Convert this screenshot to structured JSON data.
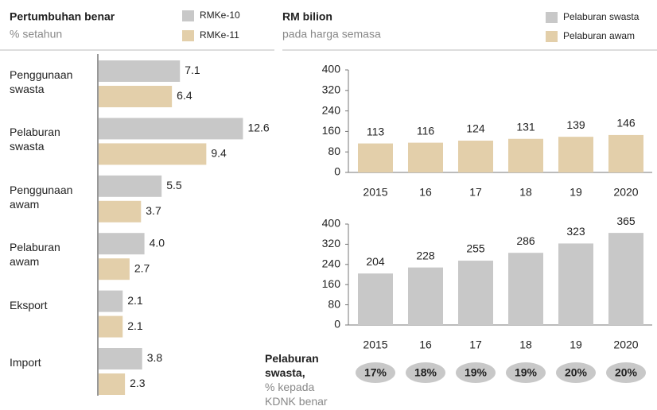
{
  "chart_data": [
    {
      "type": "hbar",
      "title": "Pertumbuhan benar",
      "subtitle": "% setahun",
      "categories": [
        "Penggunaan swasta",
        "Pelaburan swasta",
        "Penggunaan awam",
        "Pelaburan awam",
        "Eksport",
        "Import"
      ],
      "series": [
        {
          "name": "RMKe-10",
          "color": "#c8c8c8",
          "values": [
            7.1,
            12.6,
            5.5,
            4.0,
            2.1,
            3.8
          ],
          "value_labels": [
            "7.1",
            "12.6",
            "5.5",
            "4.0",
            "2.1",
            "3.8"
          ]
        },
        {
          "name": "RMKe-11",
          "color": "#e3cfaa",
          "values": [
            6.4,
            9.4,
            3.7,
            2.7,
            2.1,
            2.3
          ],
          "value_labels": [
            "6.4",
            "9.4",
            "3.7",
            "2.7",
            "2.1",
            "2.3"
          ]
        }
      ]
    },
    {
      "type": "bar",
      "title": "RM bilion",
      "subtitle": "pada harga semasa",
      "categories": [
        "2015",
        "16",
        "17",
        "18",
        "19",
        "2020"
      ],
      "series": [
        {
          "name": "Pelaburan awam",
          "color": "#e3cfaa",
          "values": [
            113,
            116,
            124,
            131,
            139,
            146
          ]
        }
      ],
      "ylim": [
        0,
        400
      ],
      "yticks": [
        0,
        80,
        160,
        240,
        320,
        400
      ]
    },
    {
      "type": "bar",
      "categories": [
        "2015",
        "16",
        "17",
        "18",
        "19",
        "2020"
      ],
      "series": [
        {
          "name": "Pelaburan swasta",
          "color": "#c8c8c8",
          "values": [
            204,
            228,
            255,
            286,
            323,
            365
          ]
        }
      ],
      "ylim": [
        0,
        400
      ],
      "yticks": [
        0,
        80,
        160,
        240,
        320,
        400
      ],
      "share": {
        "title": "Pelaburan swasta,",
        "subtitle": "% kepada KDNK benar",
        "values": [
          17,
          18,
          19,
          19,
          20,
          20
        ],
        "value_labels": [
          "17%",
          "18%",
          "19%",
          "19%",
          "20%",
          "20%"
        ]
      }
    }
  ]
}
